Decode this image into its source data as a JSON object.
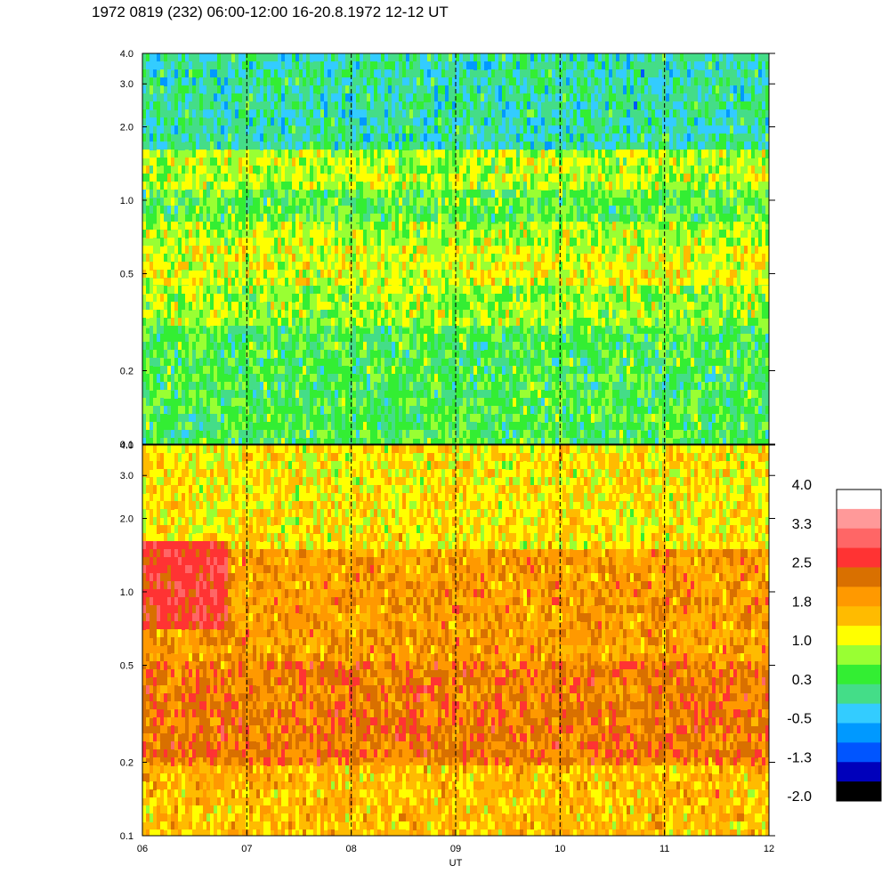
{
  "title": "1972 0819 (232) 06:00-12:00 16-20.8.1972  12-12 UT",
  "chart_data": [
    {
      "type": "heatmap",
      "panel": "upper",
      "x_ticks": [
        "06",
        "07",
        "08",
        "09",
        "10",
        "11",
        "12"
      ],
      "y_ticks": [
        "0.1",
        "0.2",
        "0.5",
        "1.0",
        "2.0",
        "3.0",
        "4.0"
      ],
      "y_scale": "log",
      "ylim": [
        0.1,
        4.0
      ],
      "xlim_hours": [
        6,
        12
      ],
      "dashed_gridlines_at_hours": [
        7,
        8,
        9,
        10,
        11
      ],
      "dominant_levels": [
        {
          "y_from": 0.1,
          "y_to": 0.3,
          "value": 0.4
        },
        {
          "y_from": 0.3,
          "y_to": 0.45,
          "value": 0.8
        },
        {
          "y_from": 0.45,
          "y_to": 0.65,
          "value": 1.1
        },
        {
          "y_from": 0.65,
          "y_to": 0.8,
          "value": 0.9
        },
        {
          "y_from": 0.8,
          "y_to": 1.1,
          "value": 0.5
        },
        {
          "y_from": 1.1,
          "y_to": 1.6,
          "value": 0.9
        },
        {
          "y_from": 1.6,
          "y_to": 4.0,
          "value": 0.0
        }
      ]
    },
    {
      "type": "heatmap",
      "panel": "lower",
      "x_ticks": [
        "06",
        "07",
        "08",
        "09",
        "10",
        "11",
        "12"
      ],
      "y_ticks": [
        "0.1",
        "0.2",
        "0.5",
        "1.0",
        "2.0",
        "3.0",
        "4.0"
      ],
      "y_scale": "log",
      "ylim": [
        0.1,
        4.0
      ],
      "xlim_hours": [
        6,
        12
      ],
      "xlabel": "UT",
      "dashed_gridlines_at_hours": [
        7,
        8,
        9,
        10,
        11
      ],
      "dominant_levels": [
        {
          "y_from": 0.1,
          "y_to": 0.2,
          "value": 1.6
        },
        {
          "y_from": 0.2,
          "y_to": 0.5,
          "value": 2.2
        },
        {
          "y_from": 0.5,
          "y_to": 1.5,
          "value": 1.9
        },
        {
          "y_from": 1.5,
          "y_to": 4.0,
          "value": 1.3
        }
      ],
      "hotspot": {
        "x_hours": [
          6.0,
          6.8
        ],
        "y": [
          0.7,
          1.6
        ],
        "value": 2.7
      }
    },
    {
      "type": "colorbar",
      "labels": [
        "4.0",
        "3.3",
        "2.5",
        "1.8",
        "1.0",
        "0.3",
        "-0.5",
        "-1.3",
        "-2.0"
      ],
      "range": [
        -2.0,
        4.0
      ],
      "colors": [
        "#ffffff",
        "#ff9999",
        "#ff6666",
        "#ff3333",
        "#d97000",
        "#ff9900",
        "#ffbb00",
        "#ffff00",
        "#99ff33",
        "#33ee33",
        "#44dd88",
        "#33ccff",
        "#0099ff",
        "#0055ff",
        "#0000bb",
        "#000000"
      ]
    }
  ]
}
